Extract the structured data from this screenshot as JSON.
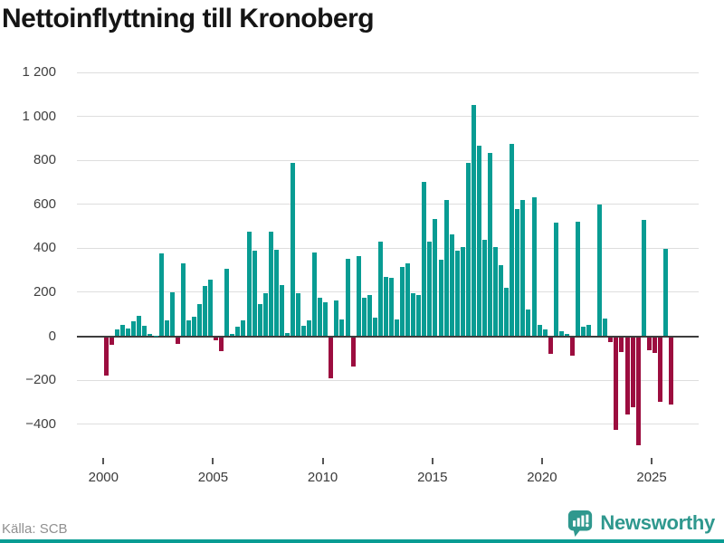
{
  "title": "Nettoinflyttning till Kronoberg",
  "source": "Källa: SCB",
  "brand": {
    "name": "Newsworthy",
    "color": "#2f988e"
  },
  "colors": {
    "positive_bar": "#089c93",
    "negative_bar": "#9c0d3f",
    "gridline": "#dedede",
    "zero_axis": "#3d3d3d",
    "axis_text": "#3f3f3f",
    "muted_text": "#909090"
  },
  "chart_data": {
    "type": "bar",
    "title": "Nettoinflyttning till Kronoberg",
    "xlabel": "",
    "ylabel": "",
    "frequency": "quarterly",
    "period_start": "2000 Q1",
    "period_end": "2025 Q4",
    "ylim": [
      -500,
      1250
    ],
    "grid": "horizontal",
    "y_ticks": [
      "1 200",
      "1 000",
      "800",
      "600",
      "400",
      "200",
      "0",
      "−200",
      "−400"
    ],
    "y_tick_values": [
      1200,
      1000,
      800,
      600,
      400,
      200,
      0,
      -200,
      -400
    ],
    "x_ticks": [
      "2000",
      "2005",
      "2010",
      "2015",
      "2020",
      "2025"
    ],
    "x_tick_years": [
      2000,
      2005,
      2010,
      2015,
      2020,
      2025
    ],
    "values": [
      -175,
      -35,
      30,
      52,
      34,
      69,
      93,
      48,
      10,
      4,
      375,
      73,
      200,
      -30,
      330,
      70,
      90,
      148,
      230,
      258,
      -15,
      -65,
      306,
      11,
      45,
      70,
      475,
      388,
      148,
      196,
      477,
      395,
      233,
      16,
      790,
      195,
      48,
      73,
      380,
      176,
      155,
      -188,
      162,
      75,
      350,
      -133,
      365,
      176,
      189,
      86,
      432,
      269,
      265,
      77,
      316,
      333,
      196,
      187,
      700,
      430,
      535,
      347,
      620,
      464,
      390,
      405,
      790,
      1050,
      865,
      440,
      835,
      405,
      325,
      222,
      875,
      580,
      620,
      120,
      630,
      50,
      30,
      -78,
      515,
      22,
      12,
      -85,
      520,
      45,
      52,
      0,
      600,
      80,
      -21,
      -420,
      -69,
      -353,
      -318,
      -490,
      530,
      -58,
      -74,
      -294,
      398,
      -307
    ]
  }
}
